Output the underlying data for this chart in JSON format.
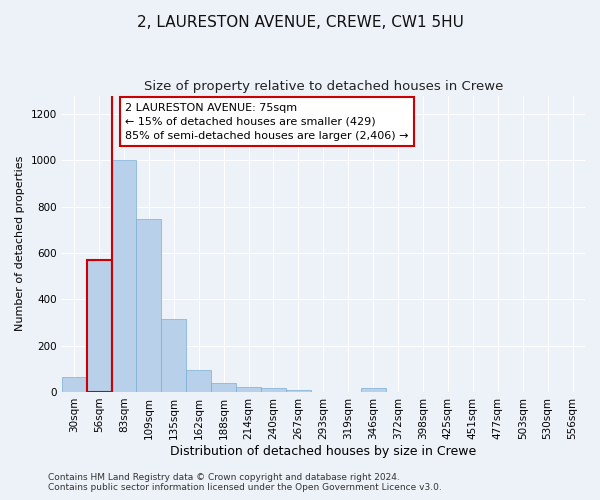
{
  "title": "2, LAURESTON AVENUE, CREWE, CW1 5HU",
  "subtitle": "Size of property relative to detached houses in Crewe",
  "xlabel": "Distribution of detached houses by size in Crewe",
  "ylabel": "Number of detached properties",
  "categories": [
    "30sqm",
    "56sqm",
    "83sqm",
    "109sqm",
    "135sqm",
    "162sqm",
    "188sqm",
    "214sqm",
    "240sqm",
    "267sqm",
    "293sqm",
    "319sqm",
    "346sqm",
    "372sqm",
    "398sqm",
    "425sqm",
    "451sqm",
    "477sqm",
    "503sqm",
    "530sqm",
    "556sqm"
  ],
  "values": [
    65,
    570,
    1000,
    745,
    315,
    95,
    40,
    22,
    18,
    10,
    0,
    0,
    15,
    0,
    0,
    0,
    0,
    0,
    0,
    0,
    0
  ],
  "bar_color": "#b8d0ea",
  "bar_edge_color": "#7aaed6",
  "vline_color": "#cc0000",
  "vline_x": 2.0,
  "highlight_bar_index": 1,
  "highlight_edge_color": "#cc0000",
  "annotation_text": "2 LAURESTON AVENUE: 75sqm\n← 15% of detached houses are smaller (429)\n85% of semi-detached houses are larger (2,406) →",
  "annotation_box_facecolor": "#ffffff",
  "annotation_box_edgecolor": "#cc0000",
  "ylim": [
    0,
    1280
  ],
  "yticks": [
    0,
    200,
    400,
    600,
    800,
    1000,
    1200
  ],
  "footer": "Contains HM Land Registry data © Crown copyright and database right 2024.\nContains public sector information licensed under the Open Government Licence v3.0.",
  "background_color": "#edf2f9",
  "grid_color": "#ffffff",
  "title_fontsize": 11,
  "subtitle_fontsize": 9.5,
  "xlabel_fontsize": 9,
  "ylabel_fontsize": 8,
  "tick_fontsize": 7.5,
  "annotation_fontsize": 8,
  "footer_fontsize": 6.5
}
